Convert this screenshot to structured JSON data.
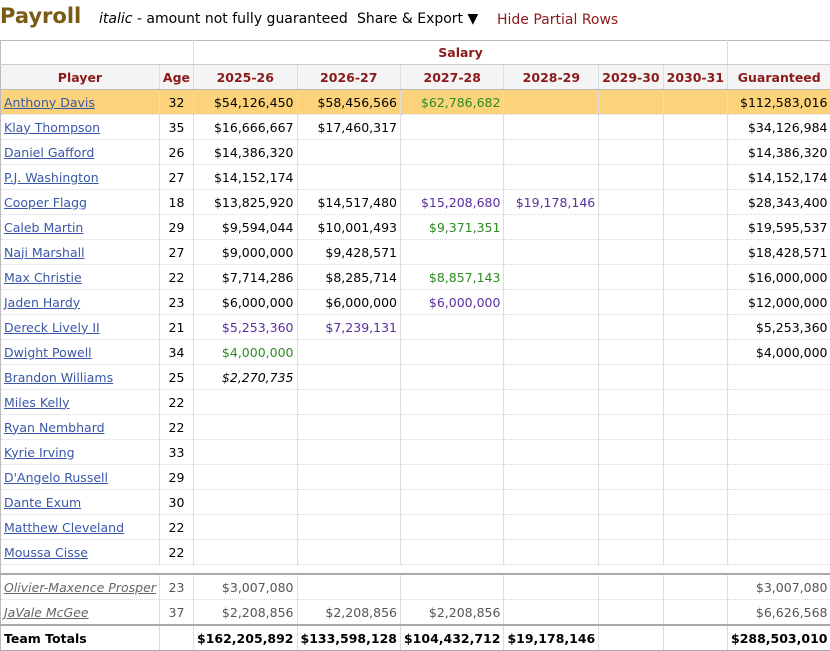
{
  "header": {
    "title": "Payroll",
    "note_italic": "italic",
    "note_rest": " - amount not fully guaranteed",
    "share_label": "Share & Export ▼",
    "hide_label": "Hide Partial Rows"
  },
  "table": {
    "group_header": "Salary",
    "columns": [
      "Player",
      "Age",
      "2025-26",
      "2026-27",
      "2027-28",
      "2028-29",
      "2029-30",
      "2030-31",
      "Guaranteed"
    ],
    "rows": [
      {
        "player": "Anthony Davis",
        "age": "32",
        "highlight": true,
        "cells": [
          {
            "v": "$54,126,450",
            "c": "black"
          },
          {
            "v": "$58,456,566",
            "c": "black"
          },
          {
            "v": "$62,786,682",
            "c": "green"
          },
          {
            "v": "",
            "c": "black"
          },
          {
            "v": "",
            "c": "black"
          },
          {
            "v": "",
            "c": "black"
          }
        ],
        "guaranteed": "$112,583,016"
      },
      {
        "player": "Klay Thompson",
        "age": "35",
        "cells": [
          {
            "v": "$16,666,667",
            "c": "black"
          },
          {
            "v": "$17,460,317",
            "c": "black"
          },
          {
            "v": "",
            "c": "black"
          },
          {
            "v": "",
            "c": "black"
          },
          {
            "v": "",
            "c": "black"
          },
          {
            "v": "",
            "c": "black"
          }
        ],
        "guaranteed": "$34,126,984"
      },
      {
        "player": "Daniel Gafford",
        "age": "26",
        "cells": [
          {
            "v": "$14,386,320",
            "c": "black"
          },
          {
            "v": "",
            "c": "black"
          },
          {
            "v": "",
            "c": "black"
          },
          {
            "v": "",
            "c": "black"
          },
          {
            "v": "",
            "c": "black"
          },
          {
            "v": "",
            "c": "black"
          }
        ],
        "guaranteed": "$14,386,320"
      },
      {
        "player": "P.J. Washington",
        "age": "27",
        "cells": [
          {
            "v": "$14,152,174",
            "c": "black"
          },
          {
            "v": "",
            "c": "black"
          },
          {
            "v": "",
            "c": "black"
          },
          {
            "v": "",
            "c": "black"
          },
          {
            "v": "",
            "c": "black"
          },
          {
            "v": "",
            "c": "black"
          }
        ],
        "guaranteed": "$14,152,174"
      },
      {
        "player": "Cooper Flagg",
        "age": "18",
        "cells": [
          {
            "v": "$13,825,920",
            "c": "black"
          },
          {
            "v": "$14,517,480",
            "c": "black"
          },
          {
            "v": "$15,208,680",
            "c": "purple"
          },
          {
            "v": "$19,178,146",
            "c": "purple"
          },
          {
            "v": "",
            "c": "black"
          },
          {
            "v": "",
            "c": "black"
          }
        ],
        "guaranteed": "$28,343,400"
      },
      {
        "player": "Caleb Martin",
        "age": "29",
        "cells": [
          {
            "v": "$9,594,044",
            "c": "black"
          },
          {
            "v": "$10,001,493",
            "c": "black"
          },
          {
            "v": "$9,371,351",
            "c": "green"
          },
          {
            "v": "",
            "c": "black"
          },
          {
            "v": "",
            "c": "black"
          },
          {
            "v": "",
            "c": "black"
          }
        ],
        "guaranteed": "$19,595,537"
      },
      {
        "player": "Naji Marshall",
        "age": "27",
        "cells": [
          {
            "v": "$9,000,000",
            "c": "black"
          },
          {
            "v": "$9,428,571",
            "c": "black"
          },
          {
            "v": "",
            "c": "black"
          },
          {
            "v": "",
            "c": "black"
          },
          {
            "v": "",
            "c": "black"
          },
          {
            "v": "",
            "c": "black"
          }
        ],
        "guaranteed": "$18,428,571"
      },
      {
        "player": "Max Christie",
        "age": "22",
        "cells": [
          {
            "v": "$7,714,286",
            "c": "black"
          },
          {
            "v": "$8,285,714",
            "c": "black"
          },
          {
            "v": "$8,857,143",
            "c": "green"
          },
          {
            "v": "",
            "c": "black"
          },
          {
            "v": "",
            "c": "black"
          },
          {
            "v": "",
            "c": "black"
          }
        ],
        "guaranteed": "$16,000,000"
      },
      {
        "player": "Jaden Hardy",
        "age": "23",
        "cells": [
          {
            "v": "$6,000,000",
            "c": "black"
          },
          {
            "v": "$6,000,000",
            "c": "black"
          },
          {
            "v": "$6,000,000",
            "c": "purple"
          },
          {
            "v": "",
            "c": "black"
          },
          {
            "v": "",
            "c": "black"
          },
          {
            "v": "",
            "c": "black"
          }
        ],
        "guaranteed": "$12,000,000"
      },
      {
        "player": "Dereck Lively II",
        "age": "21",
        "cells": [
          {
            "v": "$5,253,360",
            "c": "purple"
          },
          {
            "v": "$7,239,131",
            "c": "purple"
          },
          {
            "v": "",
            "c": "black"
          },
          {
            "v": "",
            "c": "black"
          },
          {
            "v": "",
            "c": "black"
          },
          {
            "v": "",
            "c": "black"
          }
        ],
        "guaranteed": "$5,253,360"
      },
      {
        "player": "Dwight Powell",
        "age": "34",
        "cells": [
          {
            "v": "$4,000,000",
            "c": "green"
          },
          {
            "v": "",
            "c": "black"
          },
          {
            "v": "",
            "c": "black"
          },
          {
            "v": "",
            "c": "black"
          },
          {
            "v": "",
            "c": "black"
          },
          {
            "v": "",
            "c": "black"
          }
        ],
        "guaranteed": "$4,000,000"
      },
      {
        "player": "Brandon Williams",
        "age": "25",
        "cells": [
          {
            "v": "$2,270,735",
            "c": "italic"
          },
          {
            "v": "",
            "c": "black"
          },
          {
            "v": "",
            "c": "black"
          },
          {
            "v": "",
            "c": "black"
          },
          {
            "v": "",
            "c": "black"
          },
          {
            "v": "",
            "c": "black"
          }
        ],
        "guaranteed": ""
      },
      {
        "player": "Miles Kelly",
        "age": "22",
        "cells": [
          {
            "v": "",
            "c": "black"
          },
          {
            "v": "",
            "c": "black"
          },
          {
            "v": "",
            "c": "black"
          },
          {
            "v": "",
            "c": "black"
          },
          {
            "v": "",
            "c": "black"
          },
          {
            "v": "",
            "c": "black"
          }
        ],
        "guaranteed": ""
      },
      {
        "player": "Ryan Nembhard",
        "age": "22",
        "cells": [
          {
            "v": "",
            "c": "black"
          },
          {
            "v": "",
            "c": "black"
          },
          {
            "v": "",
            "c": "black"
          },
          {
            "v": "",
            "c": "black"
          },
          {
            "v": "",
            "c": "black"
          },
          {
            "v": "",
            "c": "black"
          }
        ],
        "guaranteed": ""
      },
      {
        "player": "Kyrie Irving",
        "age": "33",
        "cells": [
          {
            "v": "",
            "c": "black"
          },
          {
            "v": "",
            "c": "black"
          },
          {
            "v": "",
            "c": "black"
          },
          {
            "v": "",
            "c": "black"
          },
          {
            "v": "",
            "c": "black"
          },
          {
            "v": "",
            "c": "black"
          }
        ],
        "guaranteed": ""
      },
      {
        "player": "D'Angelo Russell",
        "age": "29",
        "cells": [
          {
            "v": "",
            "c": "black"
          },
          {
            "v": "",
            "c": "black"
          },
          {
            "v": "",
            "c": "black"
          },
          {
            "v": "",
            "c": "black"
          },
          {
            "v": "",
            "c": "black"
          },
          {
            "v": "",
            "c": "black"
          }
        ],
        "guaranteed": ""
      },
      {
        "player": "Dante Exum",
        "age": "30",
        "cells": [
          {
            "v": "",
            "c": "black"
          },
          {
            "v": "",
            "c": "black"
          },
          {
            "v": "",
            "c": "black"
          },
          {
            "v": "",
            "c": "black"
          },
          {
            "v": "",
            "c": "black"
          },
          {
            "v": "",
            "c": "black"
          }
        ],
        "guaranteed": ""
      },
      {
        "player": "Matthew Cleveland",
        "age": "22",
        "cells": [
          {
            "v": "",
            "c": "black"
          },
          {
            "v": "",
            "c": "black"
          },
          {
            "v": "",
            "c": "black"
          },
          {
            "v": "",
            "c": "black"
          },
          {
            "v": "",
            "c": "black"
          },
          {
            "v": "",
            "c": "black"
          }
        ],
        "guaranteed": ""
      },
      {
        "player": "Moussa Cisse",
        "age": "22",
        "cells": [
          {
            "v": "",
            "c": "black"
          },
          {
            "v": "",
            "c": "black"
          },
          {
            "v": "",
            "c": "black"
          },
          {
            "v": "",
            "c": "black"
          },
          {
            "v": "",
            "c": "black"
          },
          {
            "v": "",
            "c": "black"
          }
        ],
        "guaranteed": ""
      }
    ],
    "partial_rows": [
      {
        "player": "Olivier-Maxence Prosper",
        "age": "23",
        "cells": [
          {
            "v": "$3,007,080",
            "c": "purple"
          },
          {
            "v": "",
            "c": "black"
          },
          {
            "v": "",
            "c": "black"
          },
          {
            "v": "",
            "c": "black"
          },
          {
            "v": "",
            "c": "black"
          },
          {
            "v": "",
            "c": "black"
          }
        ],
        "guaranteed": "$3,007,080"
      },
      {
        "player": "JaVale McGee",
        "age": "37",
        "cells": [
          {
            "v": "$2,208,856",
            "c": "gray"
          },
          {
            "v": "$2,208,856",
            "c": "gray"
          },
          {
            "v": "$2,208,856",
            "c": "gray"
          },
          {
            "v": "",
            "c": "black"
          },
          {
            "v": "",
            "c": "black"
          },
          {
            "v": "",
            "c": "black"
          }
        ],
        "guaranteed": "$6,626,568"
      }
    ],
    "totals": {
      "label": "Team Totals",
      "cells": [
        "$162,205,892",
        "$133,598,128",
        "$104,432,712",
        "$19,178,146",
        "",
        ""
      ],
      "guaranteed": "$288,503,010"
    }
  }
}
